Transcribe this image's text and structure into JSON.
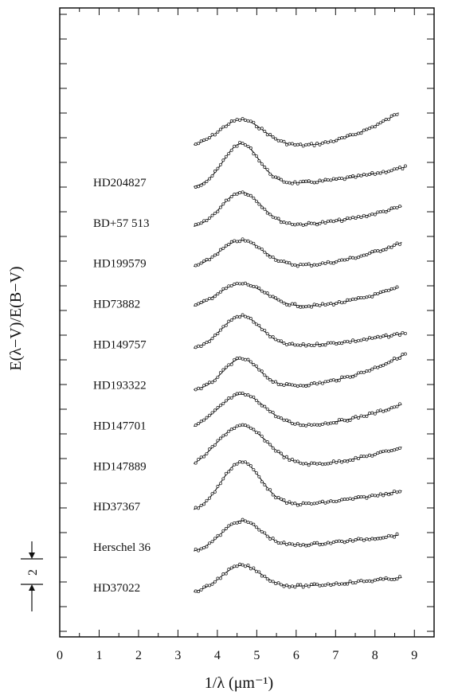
{
  "chart_data": {
    "type": "line",
    "title": "",
    "xlabel": "1/λ (μm⁻¹)",
    "ylabel": "E(λ−V)/E(B−V)",
    "xlim": [
      0,
      9.5
    ],
    "xticks": [
      "0",
      "1",
      "2",
      "3",
      "4",
      "5",
      "6",
      "7",
      "8",
      "9"
    ],
    "grid": false,
    "legend": "none",
    "offset_scale_label": "2",
    "series": [
      {
        "profile": "top",
        "bump": 2.2,
        "width": 0.55,
        "uv": 0.2,
        "rise": 3.0,
        "xmax": 8.6
      },
      {
        "name": "HD204827",
        "bump": 3.4,
        "width": 0.45,
        "uv": 0.8,
        "rise": 0.9,
        "xmax": 8.8
      },
      {
        "name": "BD+57 513",
        "bump": 2.8,
        "width": 0.5,
        "uv": 0.6,
        "rise": 1.3,
        "xmax": 8.7
      },
      {
        "name": "HD199579",
        "bump": 2.2,
        "width": 0.55,
        "uv": 0.5,
        "rise": 1.8,
        "xmax": 8.7
      },
      {
        "name": "HD73882",
        "bump": 2.0,
        "width": 0.6,
        "uv": 0.4,
        "rise": 1.6,
        "xmax": 8.6
      },
      {
        "name": "HD149757",
        "bump": 2.6,
        "width": 0.5,
        "uv": 0.7,
        "rise": 0.7,
        "xmax": 8.8
      },
      {
        "name": "HD193322",
        "bump": 2.4,
        "width": 0.45,
        "uv": 0.8,
        "rise": 2.2,
        "xmax": 8.8
      },
      {
        "name": "HD147701",
        "bump": 2.8,
        "width": 0.6,
        "uv": 0.8,
        "rise": 1.5,
        "xmax": 8.7
      },
      {
        "name": "HD147889",
        "bump": 3.5,
        "width": 0.65,
        "uv": 0.9,
        "rise": 1.2,
        "xmax": 8.7
      },
      {
        "name": "HD37367",
        "bump": 3.8,
        "width": 0.5,
        "uv": 1.2,
        "rise": 0.6,
        "xmax": 8.7
      },
      {
        "name": "Herschel 36",
        "bump": 2.3,
        "width": 0.5,
        "uv": 1.2,
        "rise": 0.3,
        "xmax": 8.6
      },
      {
        "name": "HD37022",
        "bump": 2.0,
        "width": 0.5,
        "uv": 1.1,
        "rise": 0.2,
        "xmax": 8.7
      }
    ]
  }
}
